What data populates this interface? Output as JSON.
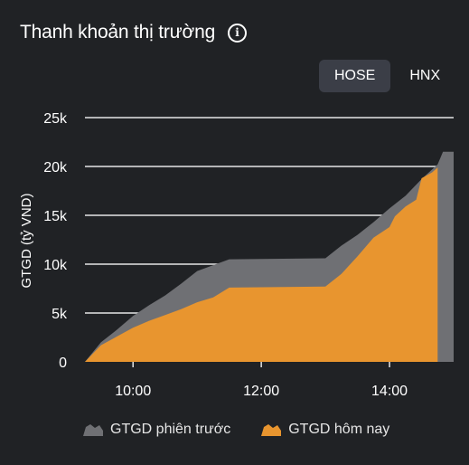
{
  "header": {
    "title": "Thanh khoản thị trường",
    "info_icon": "info-icon"
  },
  "tabs": [
    {
      "label": "HOSE",
      "active": true
    },
    {
      "label": "HNX",
      "active": false
    }
  ],
  "colors": {
    "background": "#202225",
    "previous_session": "#6f7074",
    "today": "#e8952f",
    "grid": "#e6e6e6",
    "text": "#ffffff"
  },
  "chart_data": {
    "type": "area",
    "title": "",
    "ylabel": "GTGD (tỷ VND)",
    "xlabel": "",
    "ylim": [
      0,
      25000
    ],
    "yticks": [
      0,
      5000,
      10000,
      15000,
      20000,
      25000
    ],
    "ytick_labels": [
      "0",
      "5k",
      "10k",
      "15k",
      "20k",
      "25k"
    ],
    "xlim": [
      "09:15",
      "15:00"
    ],
    "xticks": [
      "10:00",
      "12:00",
      "14:00"
    ],
    "grid": true,
    "legend_position": "bottom",
    "series": [
      {
        "name": "GTGD phiên trước",
        "color": "#6f7074",
        "points": [
          [
            "09:15",
            0
          ],
          [
            "09:30",
            2000
          ],
          [
            "09:45",
            3300
          ],
          [
            "10:00",
            4700
          ],
          [
            "10:15",
            5800
          ],
          [
            "10:30",
            6800
          ],
          [
            "10:45",
            8000
          ],
          [
            "11:00",
            9300
          ],
          [
            "11:15",
            9900
          ],
          [
            "11:30",
            10500
          ],
          [
            "13:00",
            10600
          ],
          [
            "13:15",
            11900
          ],
          [
            "13:30",
            13000
          ],
          [
            "13:45",
            14300
          ],
          [
            "14:00",
            15700
          ],
          [
            "14:15",
            17000
          ],
          [
            "14:30",
            18700
          ],
          [
            "14:45",
            20200
          ],
          [
            "14:50",
            21500
          ],
          [
            "15:00",
            21500
          ]
        ]
      },
      {
        "name": "GTGD hôm nay",
        "color": "#e8952f",
        "points": [
          [
            "09:15",
            0
          ],
          [
            "09:30",
            1700
          ],
          [
            "09:45",
            2600
          ],
          [
            "10:00",
            3500
          ],
          [
            "10:15",
            4200
          ],
          [
            "10:30",
            4800
          ],
          [
            "10:45",
            5400
          ],
          [
            "11:00",
            6100
          ],
          [
            "11:15",
            6600
          ],
          [
            "11:30",
            7600
          ],
          [
            "13:00",
            7700
          ],
          [
            "13:15",
            9000
          ],
          [
            "13:30",
            10800
          ],
          [
            "13:45",
            12700
          ],
          [
            "14:00",
            13800
          ],
          [
            "14:05",
            14900
          ],
          [
            "14:15",
            15900
          ],
          [
            "14:25",
            16600
          ],
          [
            "14:30",
            18800
          ],
          [
            "14:40",
            19400
          ],
          [
            "14:45",
            19900
          ]
        ]
      }
    ]
  }
}
